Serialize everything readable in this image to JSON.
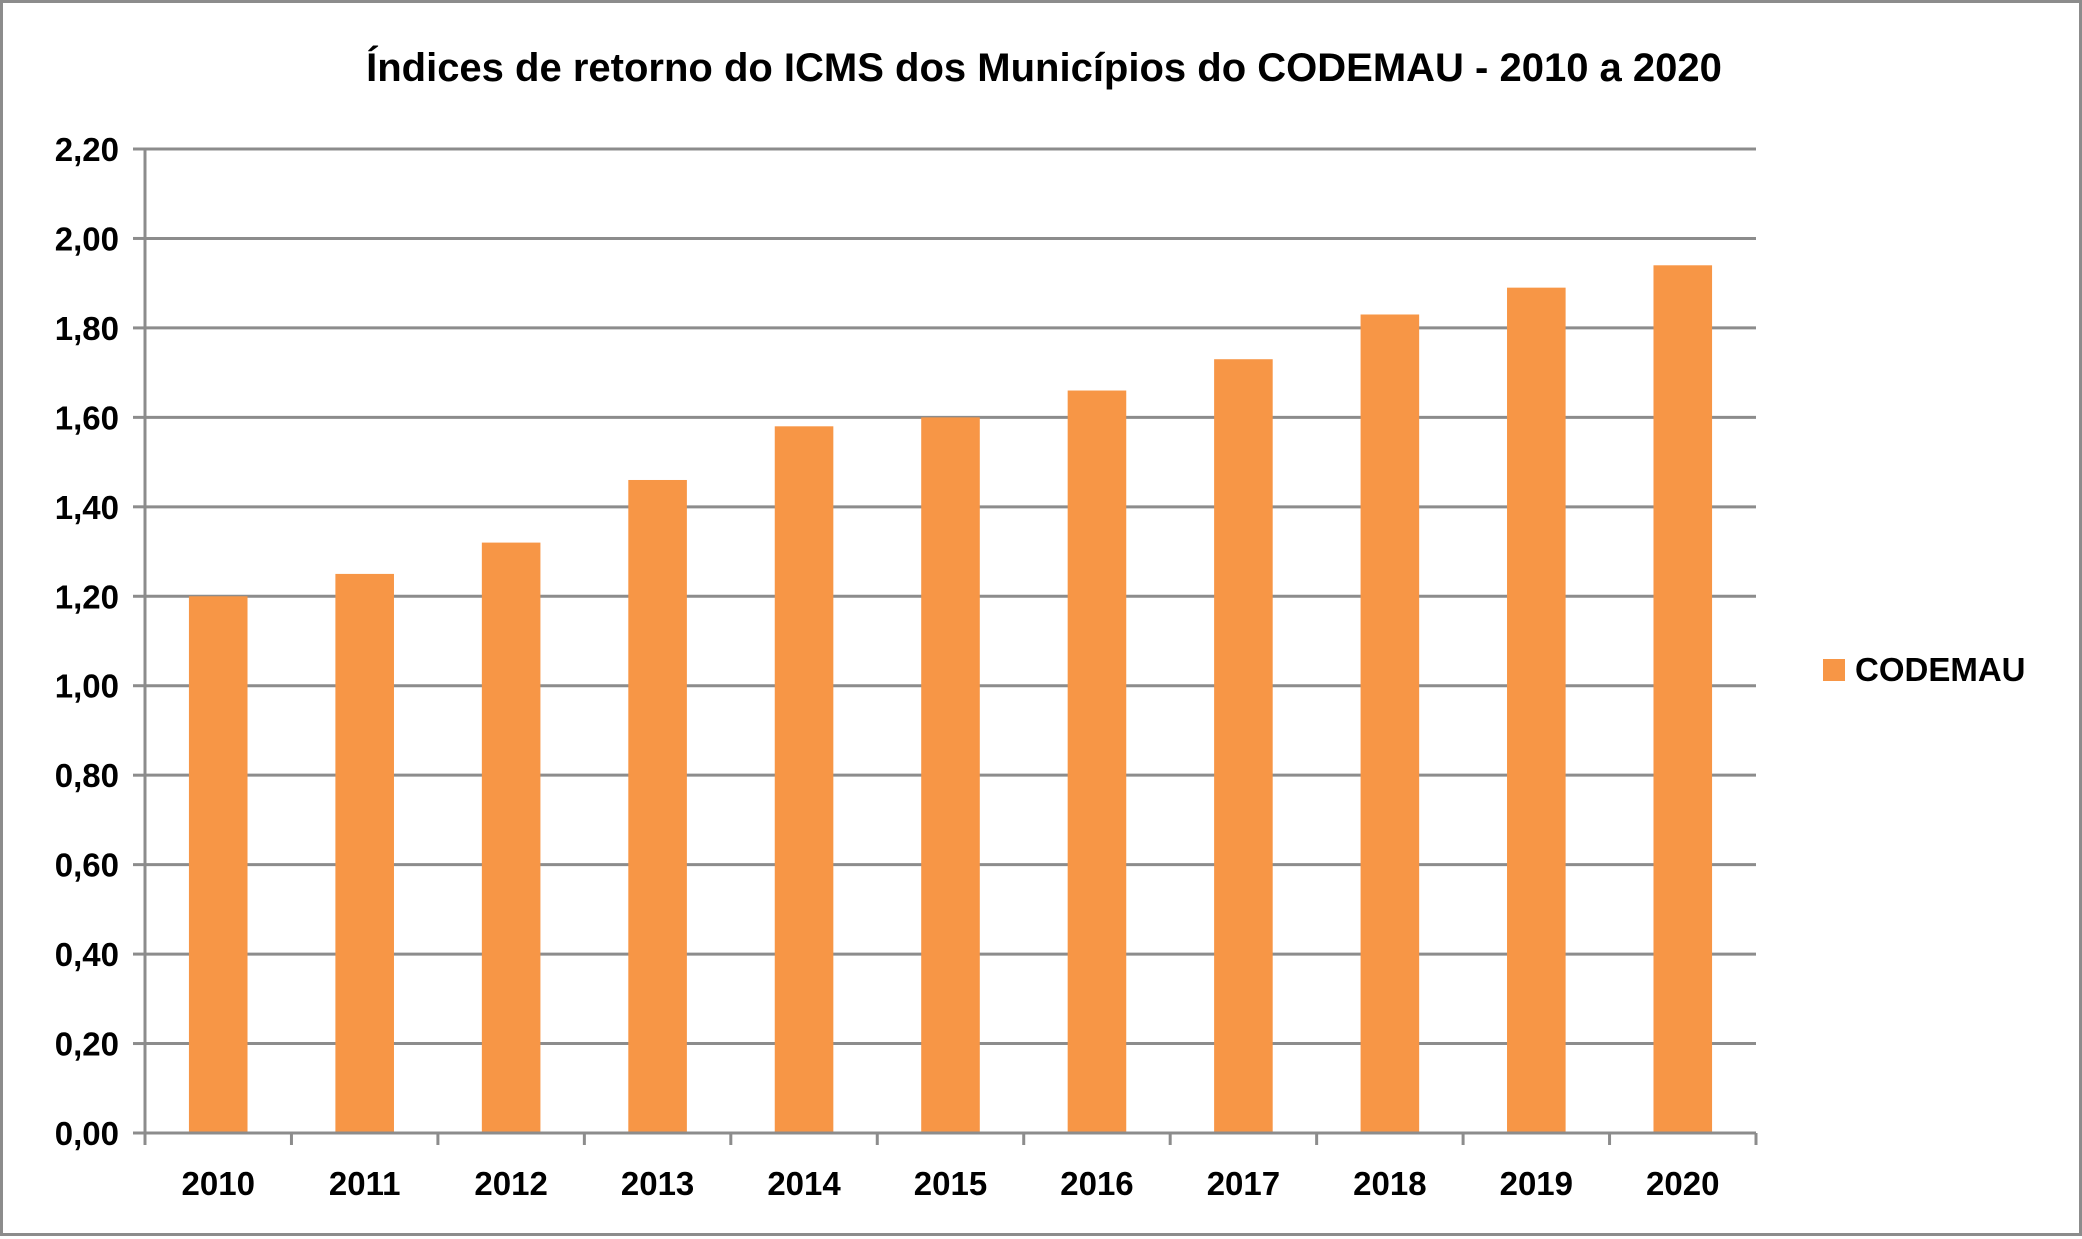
{
  "chart_data": {
    "type": "bar",
    "title": "Índices de retorno do ICMS dos Municípios do CODEMAU - 2010 a 2020",
    "xlabel": "",
    "ylabel": "",
    "categories": [
      "2010",
      "2011",
      "2012",
      "2013",
      "2014",
      "2015",
      "2016",
      "2017",
      "2018",
      "2019",
      "2020"
    ],
    "series": [
      {
        "name": "CODEMAU",
        "color": "#f79646",
        "values": [
          1.2,
          1.25,
          1.32,
          1.46,
          1.58,
          1.6,
          1.66,
          1.73,
          1.83,
          1.89,
          1.94
        ]
      }
    ],
    "ylim": [
      0,
      2.2
    ],
    "yticks": [
      "0,00",
      "0,20",
      "0,40",
      "0,60",
      "0,80",
      "1,00",
      "1,20",
      "1,40",
      "1,60",
      "1,80",
      "2,00",
      "2,20"
    ],
    "grid": true,
    "legend_position": "right"
  }
}
